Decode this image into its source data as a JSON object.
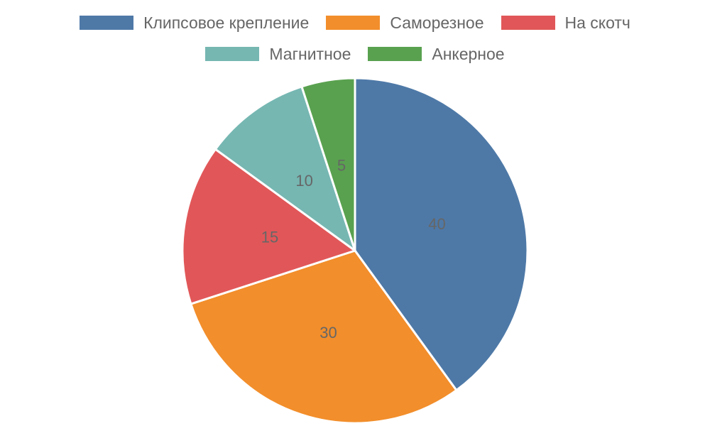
{
  "chart_data": {
    "type": "pie",
    "categories": [
      "Клипсовое крепление",
      "Саморезное",
      "На скотч",
      "Магнитное",
      "Анкерное"
    ],
    "values": [
      40,
      30,
      15,
      10,
      5
    ],
    "value_labels": [
      "40",
      "30",
      "15",
      "10",
      "5"
    ],
    "colors": [
      "#4e79a7",
      "#f28e2b",
      "#e15759",
      "#76b7b2",
      "#59a14f"
    ],
    "legend": {
      "position": "top",
      "rows": [
        [
          0,
          1,
          2
        ],
        [
          3,
          4
        ]
      ]
    },
    "start_angle": "12 o'clock",
    "direction": "clockwise"
  }
}
